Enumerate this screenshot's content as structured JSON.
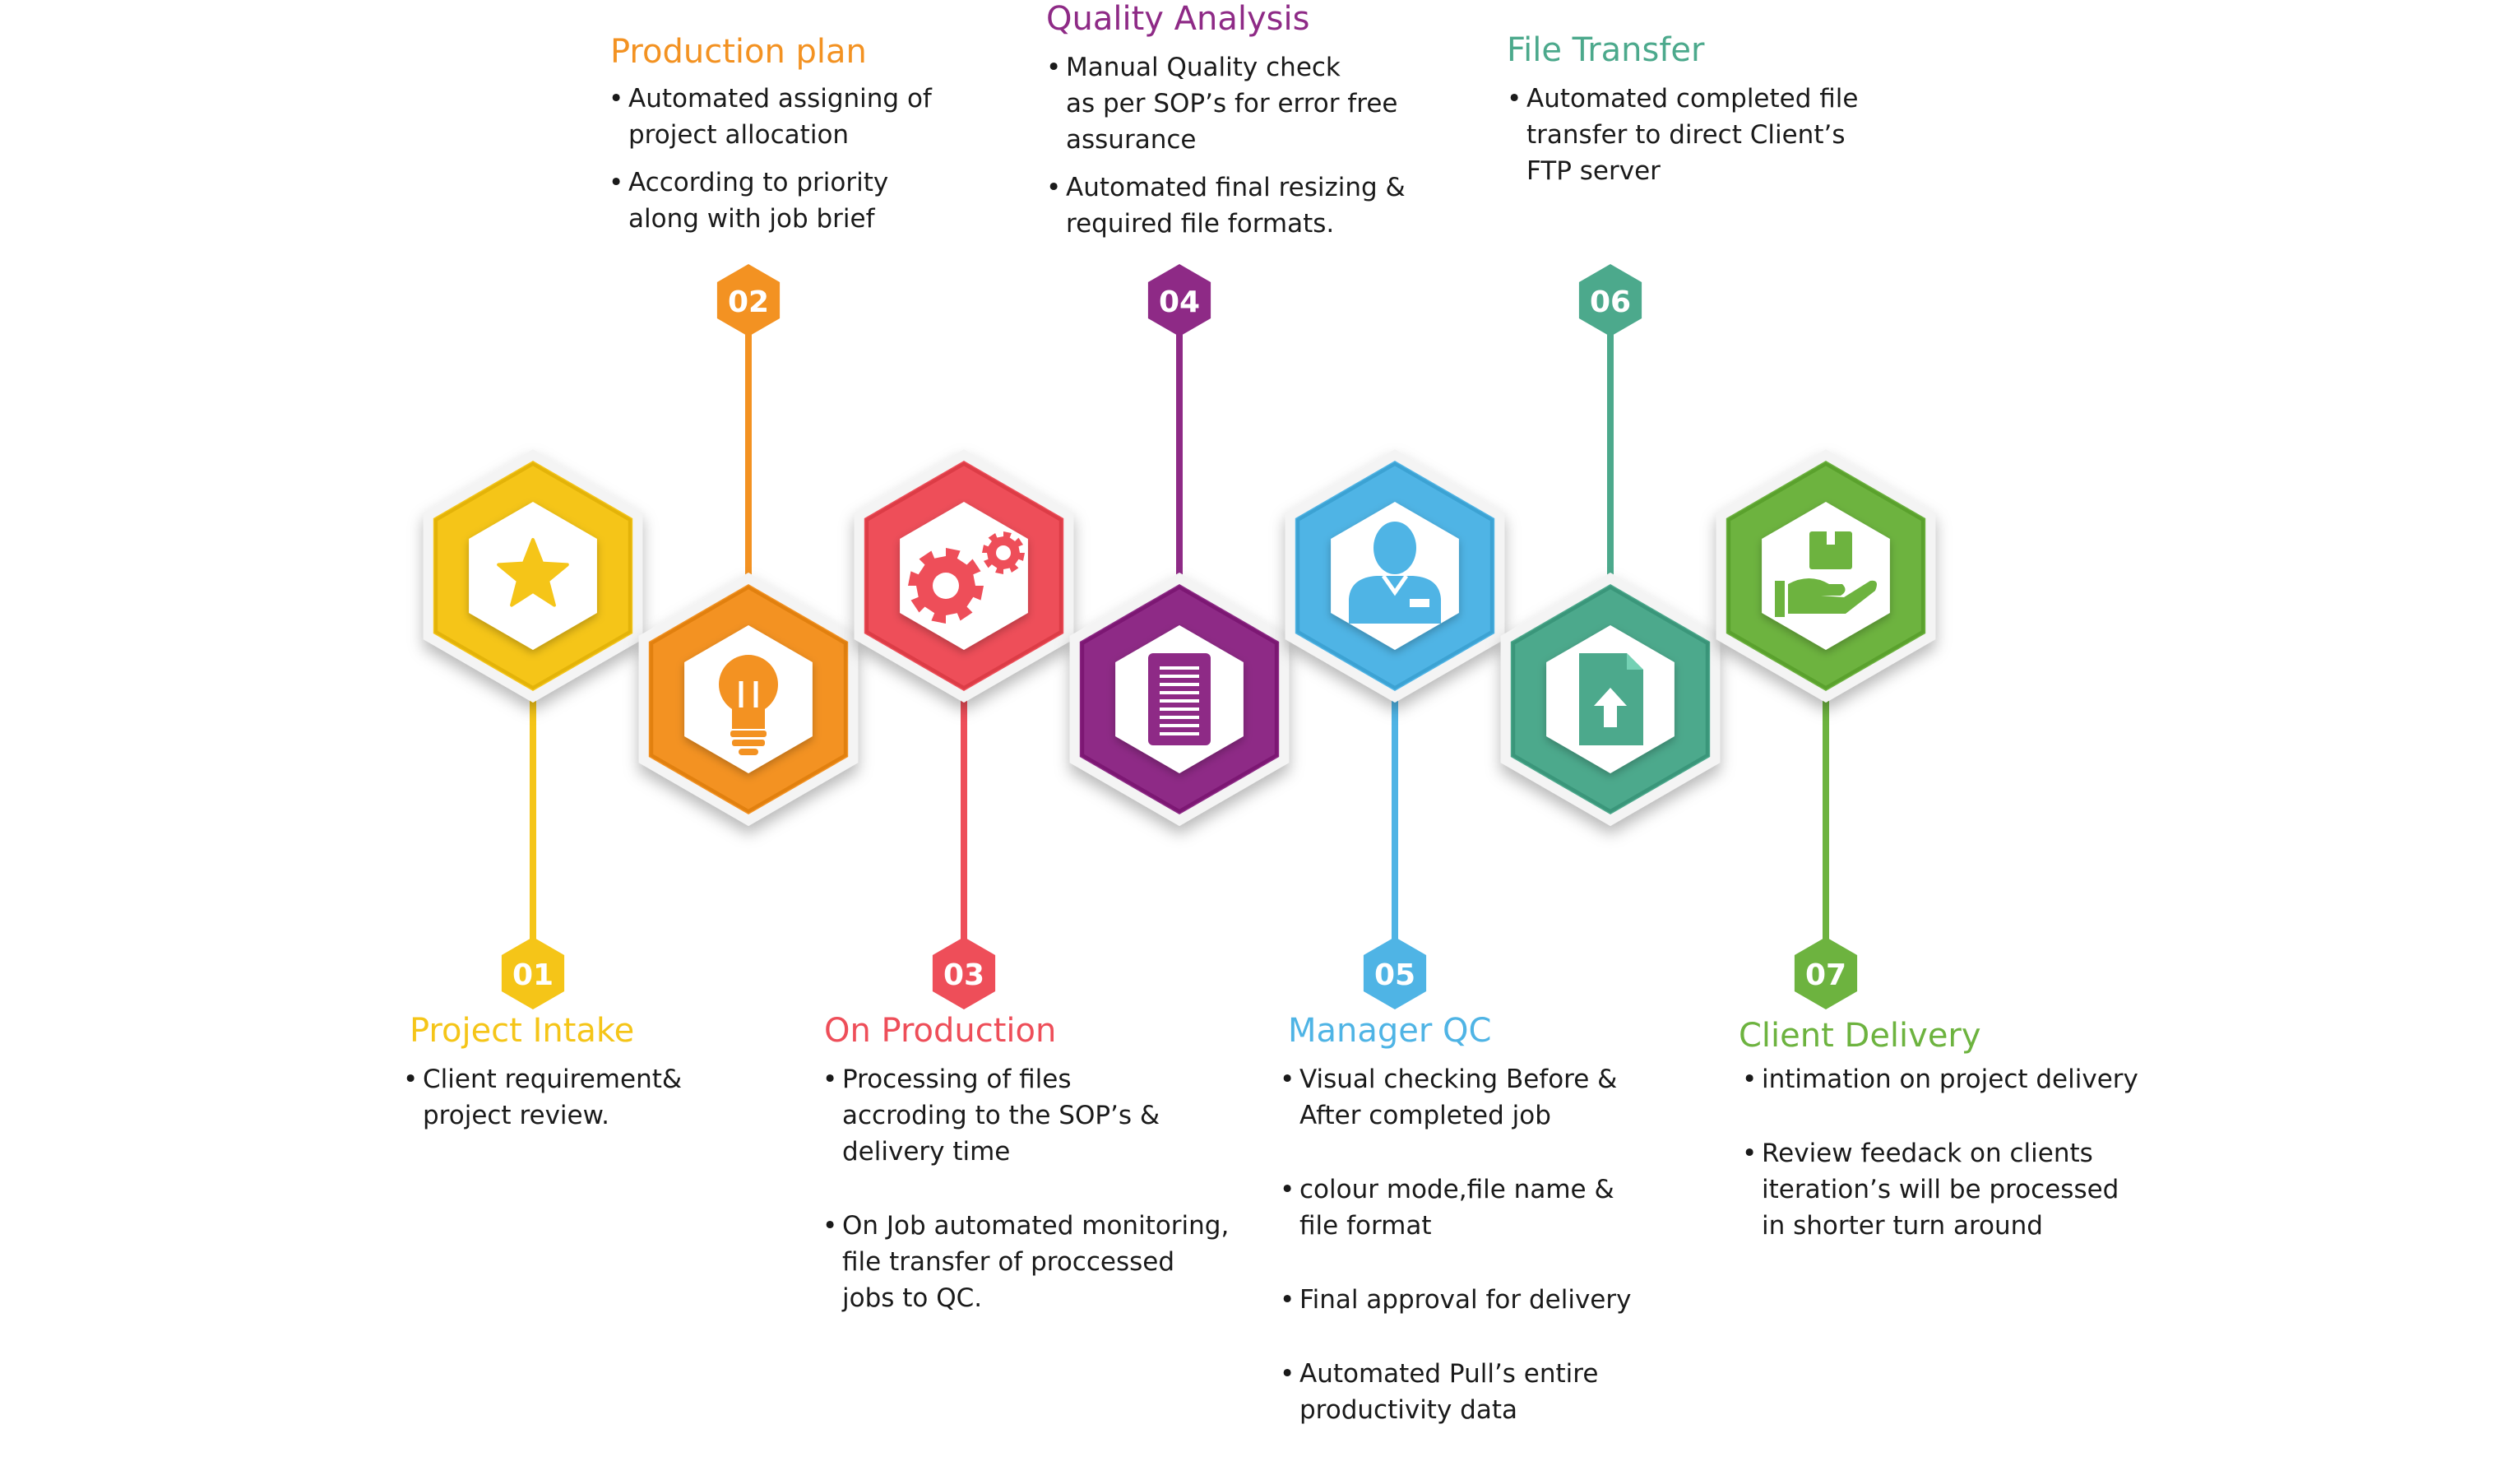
{
  "colors": {
    "yellow": "#F5C518",
    "orange": "#F39222",
    "red": "#EE4E59",
    "purple": "#8E2A86",
    "blue": "#4FB4E5",
    "teal": "#4CA98C",
    "green": "#6DB33F"
  },
  "stages": [
    {
      "number": "01",
      "title": "Project Intake",
      "color": "yellow",
      "icon": "star-icon",
      "bullets": [
        "Client requirement&\nproject review."
      ]
    },
    {
      "number": "02",
      "title": "Production plan",
      "color": "orange",
      "icon": "lightbulb-icon",
      "bullets": [
        "Automated assigning of\nproject allocation",
        "According to priority\nalong with job brief"
      ]
    },
    {
      "number": "03",
      "title": "On Production",
      "color": "red",
      "icon": "gears-icon",
      "bullets": [
        "Processing of files\naccroding to the SOP’s &\ndelivery time",
        "On Job automated monitoring,\nfile transfer of proccessed\njobs to QC."
      ]
    },
    {
      "number": "04",
      "title": "Quality Analysis",
      "color": "purple",
      "icon": "document-icon",
      "bullets": [
        "Manual Quality check\nas per SOP’s for error free\nassurance",
        "Automated final resizing &\nrequired file formats."
      ]
    },
    {
      "number": "05",
      "title": "Manager QC",
      "color": "blue",
      "icon": "manager-icon",
      "bullets": [
        "Visual checking  Before &\nAfter completed job",
        "colour mode,file name &\nfile format",
        "Final approval for delivery",
        "Automated Pull’s entire\nproductivity data"
      ]
    },
    {
      "number": "06",
      "title": "File Transfer",
      "color": "teal",
      "icon": "file-upload-icon",
      "bullets": [
        "Automated completed file\ntransfer to direct Client’s\nFTP server"
      ]
    },
    {
      "number": "07",
      "title": "Client Delivery",
      "color": "green",
      "icon": "package-delivery-icon",
      "bullets": [
        "intimation on project delivery",
        "Review feedack on clients\niteration’s will be processed\nin shorter turn around"
      ]
    }
  ]
}
